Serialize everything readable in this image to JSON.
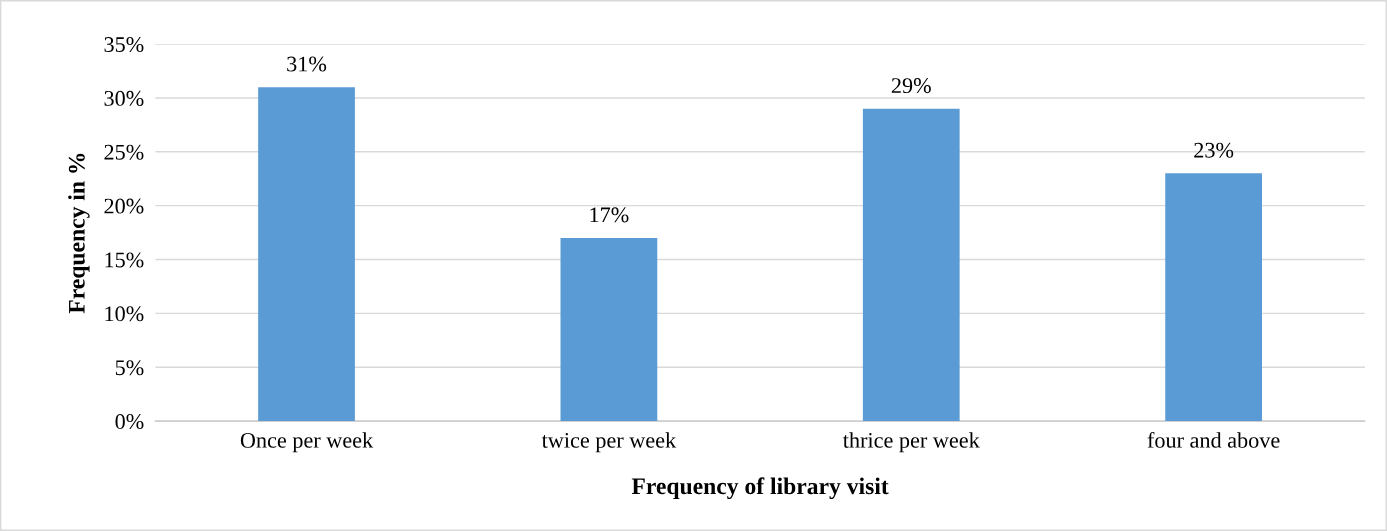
{
  "chart_data": {
    "type": "bar",
    "xlabel": "Frequency of library visit",
    "ylabel": "Frequency in %",
    "categories": [
      "Once per week",
      "twice per week",
      "thrice per week",
      "four and above"
    ],
    "values": [
      31,
      17,
      29,
      23
    ],
    "color": "#5b9bd5",
    "value_labels": [
      "31%",
      "17%",
      "29%",
      "23%"
    ],
    "ylim": [
      0,
      35
    ],
    "yticks": [
      {
        "value": 0,
        "label": "0%"
      },
      {
        "value": 5,
        "label": "5%"
      },
      {
        "value": 10,
        "label": "10%"
      },
      {
        "value": 15,
        "label": "15%"
      },
      {
        "value": 20,
        "label": "20%"
      },
      {
        "value": 25,
        "label": "25%"
      },
      {
        "value": 30,
        "label": "30%"
      },
      {
        "value": 35,
        "label": "35%"
      }
    ],
    "grid": "y",
    "legend": false
  }
}
